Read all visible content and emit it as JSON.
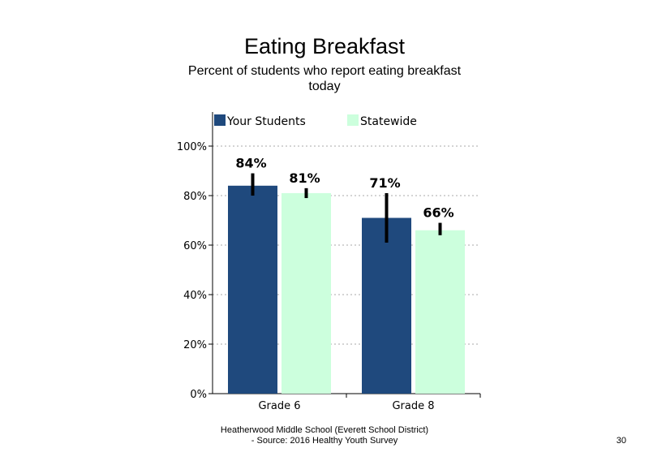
{
  "slide": {
    "title": "Eating Breakfast",
    "subtitle": "Percent of students who report eating breakfast today",
    "footer_line1": "Heatherwood Middle School (Everett School District)",
    "footer_line2": "- Source: 2016 Healthy  Youth Survey",
    "page_number": "30"
  },
  "chart_data": {
    "type": "bar",
    "title": "Eating Breakfast",
    "subtitle": "Percent of students who report eating breakfast today",
    "categories": [
      "Grade 6",
      "Grade 8"
    ],
    "series": [
      {
        "name": "Your Students",
        "color": "#1f497d",
        "values": [
          84,
          71
        ],
        "labels": [
          "84%",
          "71%"
        ],
        "error_low": [
          80,
          61
        ],
        "error_high": [
          89,
          81
        ]
      },
      {
        "name": "Statewide",
        "color": "#ccffdd",
        "values": [
          81,
          66
        ],
        "labels": [
          "81%",
          "66%"
        ],
        "error_low": [
          79,
          64
        ],
        "error_high": [
          83,
          69
        ]
      }
    ],
    "ylim": [
      0,
      100
    ],
    "yticks": [
      0,
      20,
      40,
      60,
      80,
      100
    ],
    "ytick_labels": [
      "0%",
      "20%",
      "40%",
      "60%",
      "80%",
      "100%"
    ],
    "grid": "dotted horizontal",
    "legend_position": "top",
    "xlabel": "",
    "ylabel": ""
  }
}
